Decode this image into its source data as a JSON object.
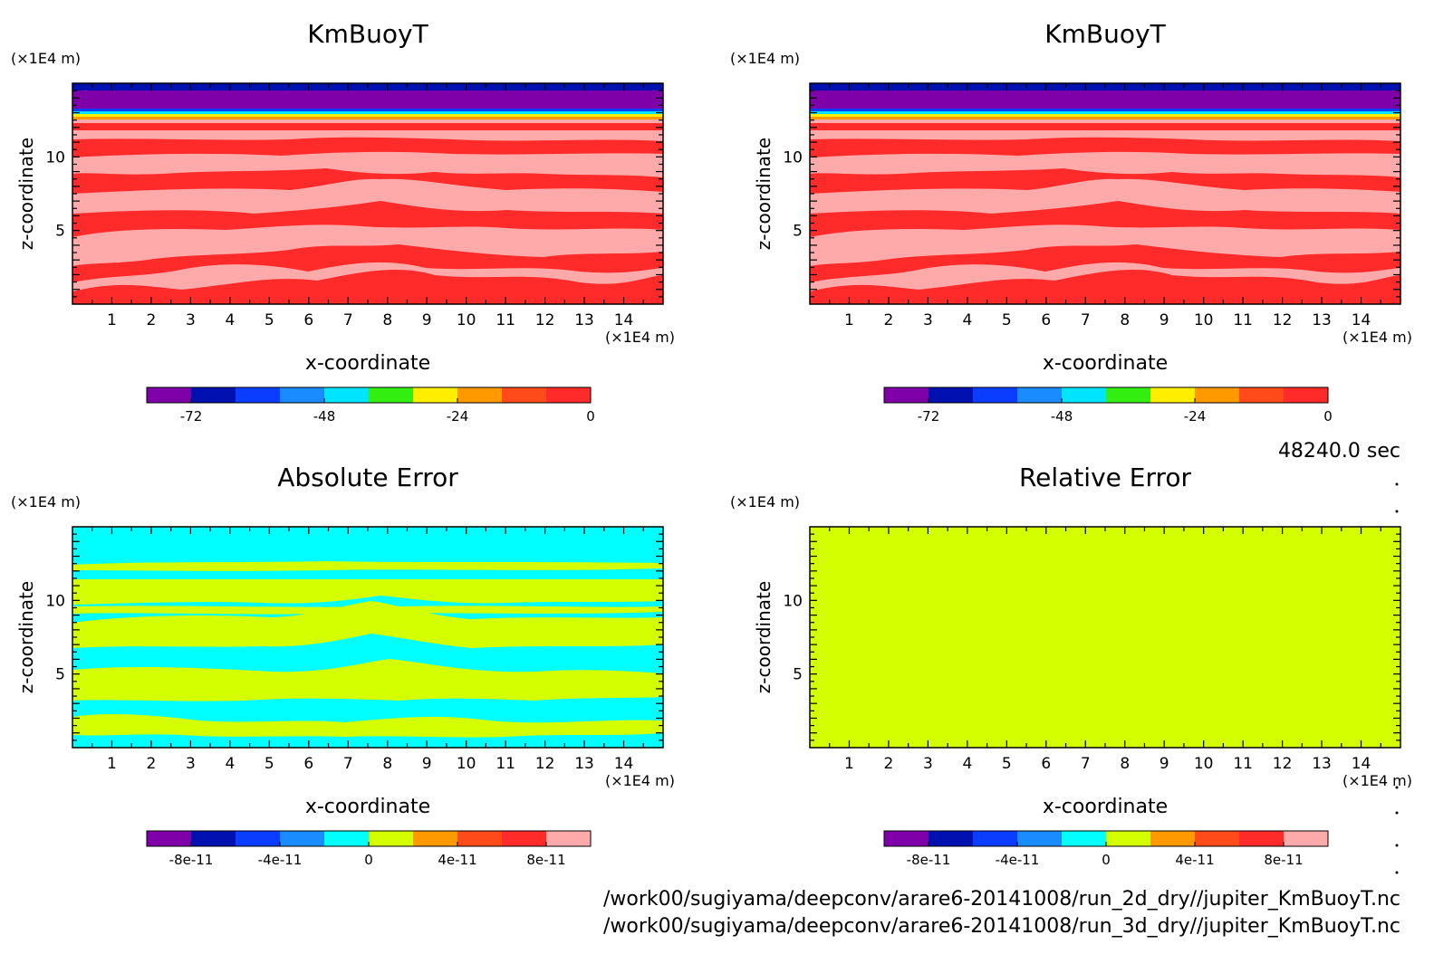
{
  "time_label": "48240.0 sec",
  "footer_paths": [
    "/work00/sugiyama/deepconv/arare6-20141008/run_2d_dry//jupiter_KmBuoyT.nc",
    "/work00/sugiyama/deepconv/arare6-20141008/run_3d_dry//jupiter_KmBuoyT.nc"
  ],
  "colors": {
    "kmbuoyt_scale": [
      "#7f00a8",
      "#0011b0",
      "#0a3dff",
      "#1a8cff",
      "#00e4ff",
      "#33ee11",
      "#ffee00",
      "#ff9900",
      "#ff4a1a",
      "#ff2a2a"
    ],
    "error_scale": [
      "#7f00a8",
      "#0011b0",
      "#0a3dff",
      "#1a8cff",
      "#00ffff",
      "#d4ff00",
      "#ff9900",
      "#ff4a1a",
      "#ff2a2a",
      "#ffaaaa"
    ]
  },
  "chart_data": [
    {
      "type": "heatmap",
      "title": "KmBuoyT",
      "xlabel": "x-coordinate",
      "ylabel": "z-coordinate",
      "x_unit": "(×1E4 m)",
      "y_unit": "(×1E4 m)",
      "xlim": [
        0,
        15
      ],
      "ylim": [
        0,
        15
      ],
      "x_ticks": [
        1,
        2,
        3,
        4,
        5,
        6,
        7,
        8,
        9,
        10,
        11,
        12,
        13,
        14
      ],
      "y_ticks": [
        5,
        10
      ],
      "colorbar": {
        "levels": [
          "-72",
          "-48",
          "-24",
          "0"
        ],
        "range": [
          -80,
          0
        ]
      },
      "layers": [
        {
          "z_from": 14.7,
          "z_to": 15.0,
          "value": -76,
          "level": "darkblue"
        },
        {
          "z_from": 13.6,
          "z_to": 14.7,
          "value": -68,
          "level": "purple"
        },
        {
          "z_from": 13.2,
          "z_to": 13.6,
          "value": -40,
          "level": "blue-green"
        },
        {
          "z_from": 12.8,
          "z_to": 13.2,
          "value": -20,
          "level": "yellow-orange"
        },
        {
          "z_from": 0,
          "z_to": 12.8,
          "value": -2,
          "level": "red / pink bands"
        }
      ]
    },
    {
      "type": "heatmap",
      "title": "KmBuoyT",
      "xlabel": "x-coordinate",
      "ylabel": "z-coordinate",
      "x_unit": "(×1E4 m)",
      "y_unit": "(×1E4 m)",
      "xlim": [
        0,
        15
      ],
      "ylim": [
        0,
        15
      ],
      "x_ticks": [
        1,
        2,
        3,
        4,
        5,
        6,
        7,
        8,
        9,
        10,
        11,
        12,
        13,
        14
      ],
      "y_ticks": [
        5,
        10
      ],
      "colorbar": {
        "levels": [
          "-72",
          "-48",
          "-24",
          "0"
        ],
        "range": [
          -80,
          0
        ]
      },
      "layers": [
        {
          "z_from": 14.7,
          "z_to": 15.0,
          "value": -76,
          "level": "darkblue"
        },
        {
          "z_from": 13.6,
          "z_to": 14.7,
          "value": -68,
          "level": "purple"
        },
        {
          "z_from": 13.2,
          "z_to": 13.6,
          "value": -40,
          "level": "blue-green"
        },
        {
          "z_from": 12.8,
          "z_to": 13.2,
          "value": -20,
          "level": "yellow-orange"
        },
        {
          "z_from": 0,
          "z_to": 12.8,
          "value": -2,
          "level": "red / pink bands"
        }
      ]
    },
    {
      "type": "heatmap",
      "title": "Absolute Error",
      "xlabel": "x-coordinate",
      "ylabel": "z-coordinate",
      "x_unit": "(×1E4 m)",
      "y_unit": "(×1E4 m)",
      "xlim": [
        0,
        15
      ],
      "ylim": [
        0,
        15
      ],
      "x_ticks": [
        1,
        2,
        3,
        4,
        5,
        6,
        7,
        8,
        9,
        10,
        11,
        12,
        13,
        14
      ],
      "y_ticks": [
        5,
        10
      ],
      "colorbar": {
        "levels": [
          "-8e-11",
          "-4e-11",
          "0",
          "4e-11",
          "8e-11"
        ],
        "range": [
          -1e-10,
          1e-10
        ]
      },
      "layers": [
        {
          "z_from": 0,
          "z_to": 15,
          "value": "alternating bands of cyan (-2e-11..0) and yellow-green (0..2e-11)"
        }
      ]
    },
    {
      "type": "heatmap",
      "title": "Relative Error",
      "xlabel": "x-coordinate",
      "ylabel": "z-coordinate",
      "x_unit": "(×1E4 m)",
      "y_unit": "(×1E4 m)",
      "xlim": [
        0,
        15
      ],
      "ylim": [
        0,
        15
      ],
      "x_ticks": [
        1,
        2,
        3,
        4,
        5,
        6,
        7,
        8,
        9,
        10,
        11,
        12,
        13,
        14
      ],
      "y_ticks": [
        5,
        10
      ],
      "colorbar": {
        "levels": [
          "-8e-11",
          "-4e-11",
          "0",
          "4e-11",
          "8e-11"
        ],
        "range": [
          -1e-10,
          1e-10
        ]
      },
      "layers": [
        {
          "z_from": 0,
          "z_to": 15,
          "value": 0,
          "level": "uniform yellow-green"
        }
      ]
    }
  ]
}
